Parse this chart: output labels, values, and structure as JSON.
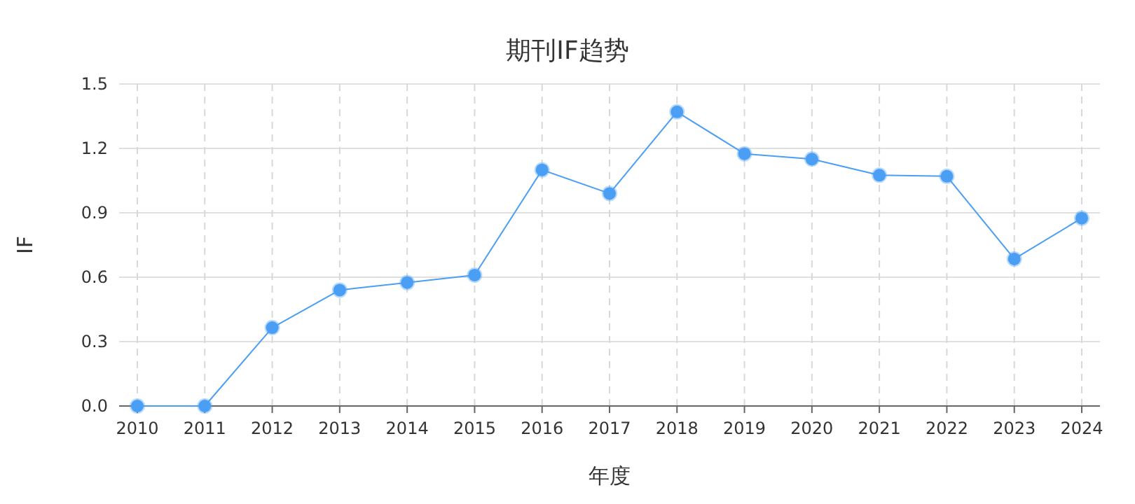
{
  "chart_data": {
    "type": "line",
    "title": "期刊IF趋势",
    "xlabel": "年度",
    "ylabel": "IF",
    "categories": [
      "2010",
      "2011",
      "2012",
      "2013",
      "2014",
      "2015",
      "2016",
      "2017",
      "2018",
      "2019",
      "2020",
      "2021",
      "2022",
      "2023",
      "2024"
    ],
    "series": [
      {
        "color": "#4a9ff5",
        "values": [
          0,
          0,
          0.365,
          0.54,
          0.575,
          0.61,
          1.1,
          0.99,
          1.37,
          1.175,
          1.15,
          1.075,
          1.07,
          0.685,
          0.875
        ]
      }
    ],
    "ylim": [
      0,
      1.5
    ],
    "yticks": [
      {
        "value": 0,
        "label": "0.0"
      },
      0.3,
      0.6,
      0.9,
      1.2,
      1.5
    ],
    "grid": true,
    "marker": "circle"
  }
}
